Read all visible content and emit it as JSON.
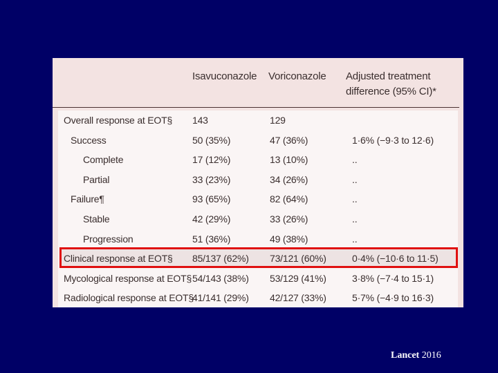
{
  "table": {
    "headers": {
      "col1": "Isavuconazole",
      "col2": "Voriconazole",
      "col3_line1": "Adjusted treatment",
      "col3_line2": "difference (95% CI)*"
    },
    "rows": [
      {
        "label": "Overall response at EOT§",
        "indent": 0,
        "isa": "143",
        "vori": "129",
        "diff": ""
      },
      {
        "label": "Success",
        "indent": 1,
        "isa": "50 (35%)",
        "vori": "47 (36%)",
        "diff": "1·6% (−9·3 to 12·6)"
      },
      {
        "label": "Complete",
        "indent": 2,
        "isa": "17 (12%)",
        "vori": "13 (10%)",
        "diff": ".."
      },
      {
        "label": "Partial",
        "indent": 2,
        "isa": "33 (23%)",
        "vori": "34 (26%)",
        "diff": ".."
      },
      {
        "label": "Failure¶",
        "indent": 1,
        "isa": "93 (65%)",
        "vori": "82 (64%)",
        "diff": ".."
      },
      {
        "label": "Stable",
        "indent": 2,
        "isa": "42 (29%)",
        "vori": "33 (26%)",
        "diff": ".."
      },
      {
        "label": "Progression",
        "indent": 2,
        "isa": "51 (36%)",
        "vori": "49 (38%)",
        "diff": ".."
      },
      {
        "label": "Clinical response at EOT§",
        "indent": 0,
        "isa": "85/137 (62%)",
        "vori": "73/121 (60%)",
        "diff": "0·4% (−10·6 to 11·5)",
        "highlighted": true
      },
      {
        "label": "Mycological response at EOT§",
        "indent": 0,
        "isa": "54/143 (38%)",
        "vori": "53/129 (41%)",
        "diff": "3·8% (−7·4 to 15·1)"
      },
      {
        "label": "Radiological response at EOT§",
        "indent": 0,
        "isa": "41/141 (29%)",
        "vori": "42/127 (33%)",
        "diff": "5·7% (−4·9 to 16·3)"
      }
    ]
  },
  "citation": {
    "journal": "Lancet",
    "year": " 2016"
  },
  "colors": {
    "background": "#000066",
    "highlight_border": "#e01010"
  }
}
